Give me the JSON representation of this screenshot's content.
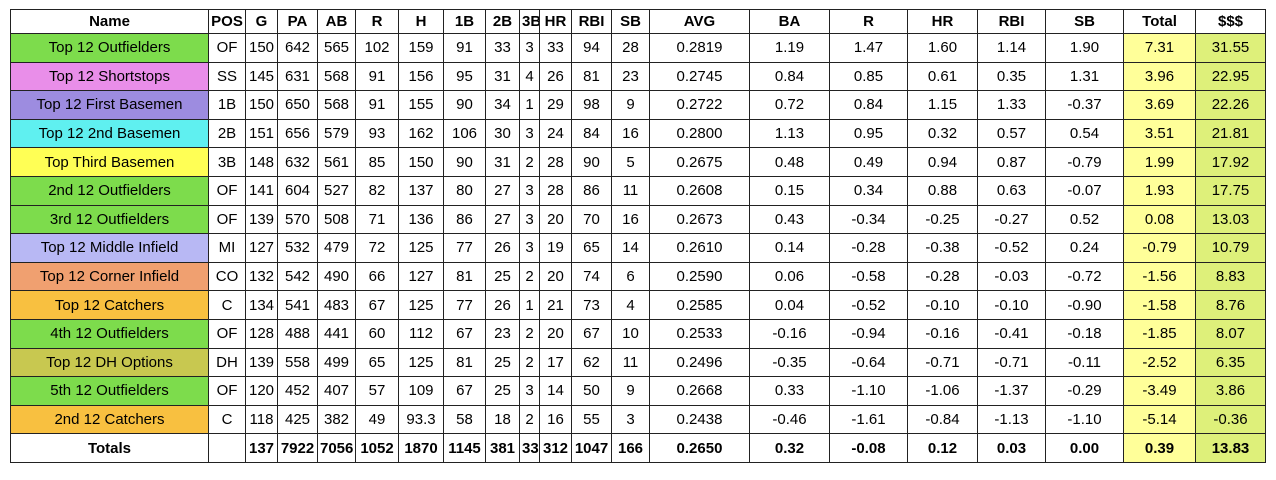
{
  "table": {
    "header": [
      "Name",
      "POS",
      "G",
      "PA",
      "AB",
      "R",
      "H",
      "1B",
      "2B",
      "3B",
      "HR",
      "RBI",
      "SB",
      "AVG",
      "BA",
      "R",
      "HR",
      "RBI",
      "SB",
      "Total",
      "$$$"
    ],
    "rows": [
      {
        "name": "Top 12 Outfielders",
        "pos": "OF",
        "color": "#7ddc4c",
        "values": [
          "150",
          "642",
          "565",
          "102",
          "159",
          "91",
          "33",
          "3",
          "33",
          "94",
          "28",
          "0.2819",
          "1.19",
          "1.47",
          "1.60",
          "1.14",
          "1.90",
          "7.31",
          "31.55"
        ]
      },
      {
        "name": "Top 12 Shortstops",
        "pos": "SS",
        "color": "#e98ee9",
        "values": [
          "145",
          "631",
          "568",
          "91",
          "156",
          "95",
          "31",
          "4",
          "26",
          "81",
          "23",
          "0.2745",
          "0.84",
          "0.85",
          "0.61",
          "0.35",
          "1.31",
          "3.96",
          "22.95"
        ]
      },
      {
        "name": "Top 12 First Basemen",
        "pos": "1B",
        "color": "#9d8ce0",
        "values": [
          "150",
          "650",
          "568",
          "91",
          "155",
          "90",
          "34",
          "1",
          "29",
          "98",
          "9",
          "0.2722",
          "0.72",
          "0.84",
          "1.15",
          "1.33",
          "-0.37",
          "3.69",
          "22.26"
        ]
      },
      {
        "name": "Top 12 2nd Basemen",
        "pos": "2B",
        "color": "#5ff0f0",
        "values": [
          "151",
          "656",
          "579",
          "93",
          "162",
          "106",
          "30",
          "3",
          "24",
          "84",
          "16",
          "0.2800",
          "1.13",
          "0.95",
          "0.32",
          "0.57",
          "0.54",
          "3.51",
          "21.81"
        ]
      },
      {
        "name": "Top Third Basemen",
        "pos": "3B",
        "color": "#ffff55",
        "values": [
          "148",
          "632",
          "561",
          "85",
          "150",
          "90",
          "31",
          "2",
          "28",
          "90",
          "5",
          "0.2675",
          "0.48",
          "0.49",
          "0.94",
          "0.87",
          "-0.79",
          "1.99",
          "17.92"
        ]
      },
      {
        "name": "2nd 12 Outfielders",
        "pos": "OF",
        "color": "#7ddc4c",
        "values": [
          "141",
          "604",
          "527",
          "82",
          "137",
          "80",
          "27",
          "3",
          "28",
          "86",
          "11",
          "0.2608",
          "0.15",
          "0.34",
          "0.88",
          "0.63",
          "-0.07",
          "1.93",
          "17.75"
        ]
      },
      {
        "name": "3rd 12 Outfielders",
        "pos": "OF",
        "color": "#7ddc4c",
        "values": [
          "139",
          "570",
          "508",
          "71",
          "136",
          "86",
          "27",
          "3",
          "20",
          "70",
          "16",
          "0.2673",
          "0.43",
          "-0.34",
          "-0.25",
          "-0.27",
          "0.52",
          "0.08",
          "13.03"
        ]
      },
      {
        "name": "Top 12 Middle Infield",
        "pos": "MI",
        "color": "#b8b8f4",
        "values": [
          "127",
          "532",
          "479",
          "72",
          "125",
          "77",
          "26",
          "3",
          "19",
          "65",
          "14",
          "0.2610",
          "0.14",
          "-0.28",
          "-0.38",
          "-0.52",
          "0.24",
          "-0.79",
          "10.79"
        ]
      },
      {
        "name": "Top 12 Corner Infield",
        "pos": "CO",
        "color": "#f0a070",
        "values": [
          "132",
          "542",
          "490",
          "66",
          "127",
          "81",
          "25",
          "2",
          "20",
          "74",
          "6",
          "0.2590",
          "0.06",
          "-0.58",
          "-0.28",
          "-0.03",
          "-0.72",
          "-1.56",
          "8.83"
        ]
      },
      {
        "name": "Top 12 Catchers",
        "pos": "C",
        "color": "#f8c040",
        "values": [
          "134",
          "541",
          "483",
          "67",
          "125",
          "77",
          "26",
          "1",
          "21",
          "73",
          "4",
          "0.2585",
          "0.04",
          "-0.52",
          "-0.10",
          "-0.10",
          "-0.90",
          "-1.58",
          "8.76"
        ]
      },
      {
        "name": "4th 12 Outfielders",
        "pos": "OF",
        "color": "#7ddc4c",
        "values": [
          "128",
          "488",
          "441",
          "60",
          "112",
          "67",
          "23",
          "2",
          "20",
          "67",
          "10",
          "0.2533",
          "-0.16",
          "-0.94",
          "-0.16",
          "-0.41",
          "-0.18",
          "-1.85",
          "8.07"
        ]
      },
      {
        "name": "Top 12 DH Options",
        "pos": "DH",
        "color": "#c8c850",
        "values": [
          "139",
          "558",
          "499",
          "65",
          "125",
          "81",
          "25",
          "2",
          "17",
          "62",
          "11",
          "0.2496",
          "-0.35",
          "-0.64",
          "-0.71",
          "-0.71",
          "-0.11",
          "-2.52",
          "6.35"
        ]
      },
      {
        "name": "5th 12 Outfielders",
        "pos": "OF",
        "color": "#7ddc4c",
        "values": [
          "120",
          "452",
          "407",
          "57",
          "109",
          "67",
          "25",
          "3",
          "14",
          "50",
          "9",
          "0.2668",
          "0.33",
          "-1.10",
          "-1.06",
          "-1.37",
          "-0.29",
          "-3.49",
          "3.86"
        ]
      },
      {
        "name": "2nd 12 Catchers",
        "pos": "C",
        "color": "#f8c040",
        "values": [
          "118",
          "425",
          "382",
          "49",
          "93.3",
          "58",
          "18",
          "2",
          "16",
          "55",
          "3",
          "0.2438",
          "-0.46",
          "-1.61",
          "-0.84",
          "-1.13",
          "-1.10",
          "-5.14",
          "-0.36"
        ]
      }
    ],
    "totals": {
      "label": "Totals",
      "values": [
        "137",
        "7922",
        "7056",
        "1052",
        "1870",
        "1145",
        "381",
        "33",
        "312",
        "1047",
        "166",
        "0.2650",
        "0.32",
        "-0.08",
        "0.12",
        "0.03",
        "0.00",
        "0.39",
        "13.83"
      ]
    }
  }
}
